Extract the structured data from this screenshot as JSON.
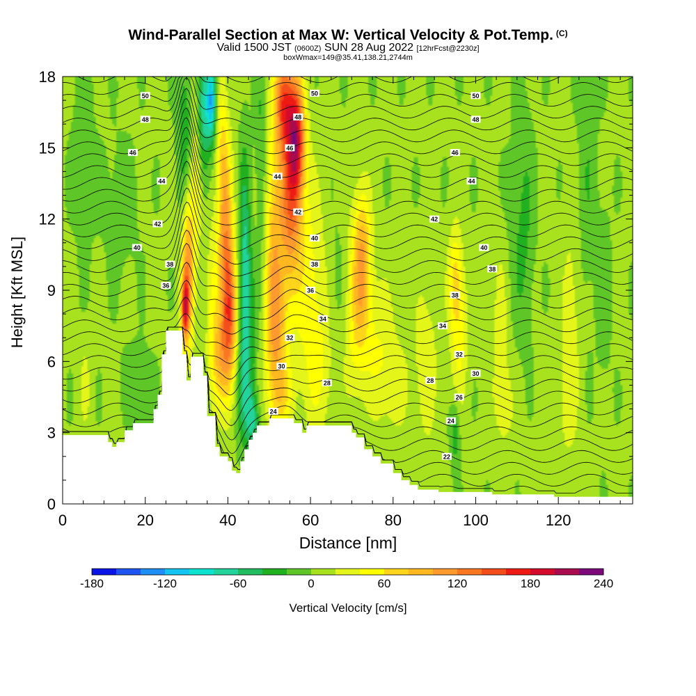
{
  "header": {
    "title": "Wind-Parallel Section at Max W: Vertical Velocity & Pot.Temp.",
    "copyright": "(C)",
    "valid_prefix": "Valid 1500 JST",
    "valid_utc": "(0600Z)",
    "valid_date": "SUN 28 Aug 2022",
    "forecast": "[12hrFcst@2230z]",
    "box_info": "boxWmax=149@35.41,138.21,2744m"
  },
  "chart_data": {
    "type": "heatmap",
    "title": "Wind-Parallel Section at Max W: Vertical Velocity & Pot.Temp.",
    "xlabel": "Distance [nm]",
    "ylabel": "Height [Kft MSL]",
    "xlim": [
      0,
      138
    ],
    "ylim": [
      0,
      18
    ],
    "x_ticks": [
      0,
      20,
      40,
      60,
      80,
      100,
      120
    ],
    "y_ticks": [
      0,
      3,
      6,
      9,
      12,
      15,
      18
    ],
    "colorbar": {
      "label": "Vertical Velocity [cm/s]",
      "ticks": [
        -180,
        -120,
        -60,
        0,
        60,
        120,
        180,
        240
      ],
      "levels": [
        -180,
        -160,
        -140,
        -120,
        -100,
        -80,
        -60,
        -40,
        -20,
        0,
        20,
        40,
        60,
        80,
        100,
        120,
        140,
        160,
        180,
        200,
        220,
        240
      ],
      "colors": [
        "#0a14e6",
        "#1e55f0",
        "#1f8ef5",
        "#12c4ef",
        "#0ee3d0",
        "#22d39c",
        "#22bc60",
        "#20b020",
        "#5fc627",
        "#a8e11d",
        "#e4f51a",
        "#ffff00",
        "#ffd51c",
        "#ffb820",
        "#fe9a2e",
        "#fa7620",
        "#f44d1c",
        "#ee1a14",
        "#d40b2c",
        "#a90c4e",
        "#7a0a7a"
      ]
    },
    "terrain_profile": [
      [
        0,
        2.9
      ],
      [
        2,
        2.9
      ],
      [
        11,
        2.9
      ],
      [
        11,
        2.6
      ],
      [
        12,
        2.6
      ],
      [
        12,
        2.4
      ],
      [
        13,
        2.4
      ],
      [
        13,
        2.6
      ],
      [
        15,
        2.6
      ],
      [
        15,
        3.1
      ],
      [
        17,
        3.1
      ],
      [
        17,
        3.4
      ],
      [
        22,
        3.4
      ],
      [
        22,
        4.0
      ],
      [
        23,
        4.0
      ],
      [
        23,
        4.6
      ],
      [
        24,
        4.6
      ],
      [
        24,
        6.3
      ],
      [
        25,
        6.3
      ],
      [
        25,
        7.3
      ],
      [
        29,
        7.3
      ],
      [
        29,
        6.3
      ],
      [
        30,
        6.3
      ],
      [
        30,
        5.2
      ],
      [
        31,
        5.2
      ],
      [
        31,
        6.2
      ],
      [
        34,
        6.2
      ],
      [
        34,
        5.4
      ],
      [
        35,
        5.4
      ],
      [
        35,
        3.7
      ],
      [
        37,
        3.7
      ],
      [
        37,
        2.4
      ],
      [
        38,
        2.4
      ],
      [
        38,
        2.0
      ],
      [
        40,
        2.0
      ],
      [
        40,
        1.8
      ],
      [
        41,
        1.8
      ],
      [
        41,
        1.4
      ],
      [
        42,
        1.4
      ],
      [
        42,
        1.3
      ],
      [
        43,
        1.3
      ],
      [
        43,
        1.8
      ],
      [
        44,
        1.8
      ],
      [
        44,
        2.3
      ],
      [
        45,
        2.3
      ],
      [
        45,
        2.7
      ],
      [
        46,
        2.7
      ],
      [
        46,
        3.0
      ],
      [
        47,
        3.0
      ],
      [
        47,
        3.3
      ],
      [
        50,
        3.3
      ],
      [
        50,
        3.6
      ],
      [
        52,
        3.6
      ],
      [
        52,
        3.6
      ],
      [
        56,
        3.6
      ],
      [
        56,
        3.4
      ],
      [
        58,
        3.4
      ],
      [
        58,
        3.0
      ],
      [
        59,
        3.0
      ],
      [
        59,
        3.3
      ],
      [
        61,
        3.3
      ],
      [
        61,
        3.3
      ],
      [
        66,
        3.3
      ],
      [
        66,
        3.3
      ],
      [
        70,
        3.3
      ],
      [
        70,
        3.0
      ],
      [
        71,
        3.0
      ],
      [
        71,
        2.8
      ],
      [
        73,
        2.8
      ],
      [
        73,
        2.3
      ],
      [
        75,
        2.3
      ],
      [
        75,
        2.0
      ],
      [
        77,
        2.0
      ],
      [
        77,
        1.7
      ],
      [
        80,
        1.7
      ],
      [
        80,
        1.3
      ],
      [
        82,
        1.3
      ],
      [
        82,
        1.0
      ],
      [
        84,
        1.0
      ],
      [
        84,
        0.8
      ],
      [
        86,
        0.8
      ],
      [
        86,
        0.6
      ],
      [
        91,
        0.6
      ],
      [
        91,
        0.5
      ],
      [
        104,
        0.5
      ],
      [
        104,
        0.4
      ],
      [
        119,
        0.4
      ],
      [
        119,
        0.3
      ],
      [
        138,
        0.3
      ]
    ],
    "w_features": [
      {
        "x": 5.5,
        "y": 5.0,
        "value": 20,
        "sx": 1.0,
        "sy": 1.4
      },
      {
        "x": 18.0,
        "y": 5.2,
        "value": -20,
        "sx": 2.5,
        "sy": 1.0
      },
      {
        "x": 19.5,
        "y": 3.8,
        "value": -20,
        "sx": 1.2,
        "sy": 0.7
      },
      {
        "x": 27.0,
        "y": 5.5,
        "value": 25,
        "sx": 1.5,
        "sy": 1.0
      },
      {
        "x": 30.3,
        "y": 9.7,
        "value": 110,
        "sx": 1.0,
        "sy": 2.2
      },
      {
        "x": 29.6,
        "y": 8.2,
        "value": 130,
        "sx": 0.6,
        "sy": 0.9
      },
      {
        "x": 32.3,
        "y": 13.5,
        "value": 40,
        "sx": 1.0,
        "sy": 2.8
      },
      {
        "x": 29.5,
        "y": 15.8,
        "value": -40,
        "sx": 1.2,
        "sy": 2.4
      },
      {
        "x": 34.0,
        "y": 16.5,
        "value": -70,
        "sx": 1.0,
        "sy": 1.8
      },
      {
        "x": 36.0,
        "y": 17.0,
        "value": -120,
        "sx": 0.8,
        "sy": 1.2
      },
      {
        "x": 34.5,
        "y": 10.5,
        "value": -15,
        "sx": 1.2,
        "sy": 3.5
      },
      {
        "x": 36.0,
        "y": 9.0,
        "value": 35,
        "sx": 1.5,
        "sy": 3.0
      },
      {
        "x": 39.5,
        "y": 11.0,
        "value": 90,
        "sx": 1.2,
        "sy": 3.0
      },
      {
        "x": 40.5,
        "y": 8.0,
        "value": 110,
        "sx": 1.2,
        "sy": 2.0
      },
      {
        "x": 38.0,
        "y": 6.0,
        "value": 70,
        "sx": 1.5,
        "sy": 1.5
      },
      {
        "x": 38.5,
        "y": 15.0,
        "value": 40,
        "sx": 1.0,
        "sy": 2.5
      },
      {
        "x": 44.0,
        "y": 10.0,
        "value": -60,
        "sx": 0.9,
        "sy": 3.5
      },
      {
        "x": 45.0,
        "y": 8.0,
        "value": -40,
        "sx": 1.2,
        "sy": 2.5
      },
      {
        "x": 44.0,
        "y": 4.5,
        "value": -40,
        "sx": 1.5,
        "sy": 1.5
      },
      {
        "x": 46.0,
        "y": 3.5,
        "value": -60,
        "sx": 1.0,
        "sy": 0.8
      },
      {
        "x": 48.0,
        "y": 14.0,
        "value": -30,
        "sx": 1.0,
        "sy": 4.0
      },
      {
        "x": 47.0,
        "y": 11.5,
        "value": 10,
        "sx": 1.0,
        "sy": 2.0
      },
      {
        "x": 51.0,
        "y": 10.5,
        "value": 70,
        "sx": 1.5,
        "sy": 4.0
      },
      {
        "x": 53.5,
        "y": 17.0,
        "value": 130,
        "sx": 1.5,
        "sy": 1.5
      },
      {
        "x": 56.5,
        "y": 15.5,
        "value": 160,
        "sx": 1.5,
        "sy": 1.8
      },
      {
        "x": 55.0,
        "y": 12.5,
        "value": 110,
        "sx": 2.0,
        "sy": 2.5
      },
      {
        "x": 52.0,
        "y": 7.0,
        "value": 60,
        "sx": 2.0,
        "sy": 2.0
      },
      {
        "x": 53.0,
        "y": 4.5,
        "value": 40,
        "sx": 2.0,
        "sy": 1.0
      },
      {
        "x": 60.0,
        "y": 9.5,
        "value": 40,
        "sx": 3.0,
        "sy": 3.0
      },
      {
        "x": 62.0,
        "y": 5.5,
        "value": 30,
        "sx": 3.0,
        "sy": 2.0
      },
      {
        "x": 66.0,
        "y": 9.0,
        "value": -15,
        "sx": 2.0,
        "sy": 2.5
      },
      {
        "x": 72.5,
        "y": 10.5,
        "value": 80,
        "sx": 1.5,
        "sy": 2.0
      },
      {
        "x": 71.0,
        "y": 8.0,
        "value": 45,
        "sx": 2.0,
        "sy": 2.5
      },
      {
        "x": 76.0,
        "y": 7.0,
        "value": 30,
        "sx": 3.0,
        "sy": 2.0
      },
      {
        "x": 80.0,
        "y": 5.0,
        "value": 25,
        "sx": 3.0,
        "sy": 1.5
      },
      {
        "x": 88.0,
        "y": 6.0,
        "value": 30,
        "sx": 2.0,
        "sy": 2.5
      },
      {
        "x": 95.0,
        "y": 9.5,
        "value": 55,
        "sx": 1.2,
        "sy": 1.5
      },
      {
        "x": 96.0,
        "y": 7.0,
        "value": 40,
        "sx": 1.5,
        "sy": 2.0
      },
      {
        "x": 95.0,
        "y": 3.0,
        "value": -40,
        "sx": 0.8,
        "sy": 1.0
      },
      {
        "x": 106.0,
        "y": 7.5,
        "value": 25,
        "sx": 1.5,
        "sy": 2.5
      },
      {
        "x": 107.0,
        "y": 4.0,
        "value": 20,
        "sx": 2.0,
        "sy": 1.5
      },
      {
        "x": 110.0,
        "y": 11.0,
        "value": -15,
        "sx": 2.0,
        "sy": 3.0
      },
      {
        "x": 112.0,
        "y": 12.0,
        "value": -20,
        "sx": 1.5,
        "sy": 3.5
      },
      {
        "x": 123.0,
        "y": 7.5,
        "value": 30,
        "sx": 1.5,
        "sy": 3.0
      },
      {
        "x": 127.0,
        "y": 14.0,
        "value": -20,
        "sx": 1.5,
        "sy": 4.0
      },
      {
        "x": 131.0,
        "y": 9.0,
        "value": -15,
        "sx": 1.2,
        "sy": 3.0
      },
      {
        "x": 120.0,
        "y": 3.5,
        "value": 15,
        "sx": 3.0,
        "sy": 2.0
      },
      {
        "x": 14.0,
        "y": 12.5,
        "value": -15,
        "sx": 3.0,
        "sy": 2.0
      },
      {
        "x": 5.0,
        "y": 15.0,
        "value": -15,
        "sx": 2.0,
        "sy": 3.0
      }
    ],
    "theta_labels": [
      {
        "value": "50",
        "x": 20,
        "y": 17.2
      },
      {
        "value": "48",
        "x": 20,
        "y": 16.2
      },
      {
        "value": "46",
        "x": 17,
        "y": 14.8
      },
      {
        "value": "44",
        "x": 24,
        "y": 13.6
      },
      {
        "value": "42",
        "x": 23,
        "y": 11.8
      },
      {
        "value": "40",
        "x": 18,
        "y": 10.8
      },
      {
        "value": "38",
        "x": 26,
        "y": 10.1
      },
      {
        "value": "36",
        "x": 25,
        "y": 9.2
      },
      {
        "value": "50",
        "x": 61,
        "y": 17.3
      },
      {
        "value": "48",
        "x": 57,
        "y": 16.3
      },
      {
        "value": "46",
        "x": 55,
        "y": 15.0
      },
      {
        "value": "44",
        "x": 52,
        "y": 13.8
      },
      {
        "value": "42",
        "x": 57,
        "y": 12.3
      },
      {
        "value": "40",
        "x": 61,
        "y": 11.2
      },
      {
        "value": "38",
        "x": 61,
        "y": 10.1
      },
      {
        "value": "36",
        "x": 60,
        "y": 9.0
      },
      {
        "value": "34",
        "x": 63,
        "y": 7.8
      },
      {
        "value": "32",
        "x": 55,
        "y": 7.0
      },
      {
        "value": "30",
        "x": 53,
        "y": 5.8
      },
      {
        "value": "28",
        "x": 64,
        "y": 5.1
      },
      {
        "value": "24",
        "x": 51,
        "y": 3.9
      },
      {
        "value": "50",
        "x": 100,
        "y": 17.2
      },
      {
        "value": "48",
        "x": 100,
        "y": 16.2
      },
      {
        "value": "46",
        "x": 95,
        "y": 14.8
      },
      {
        "value": "44",
        "x": 99,
        "y": 13.6
      },
      {
        "value": "42",
        "x": 90,
        "y": 12.0
      },
      {
        "value": "40",
        "x": 102,
        "y": 10.8
      },
      {
        "value": "38",
        "x": 104,
        "y": 9.9
      },
      {
        "value": "38",
        "x": 95,
        "y": 8.8
      },
      {
        "value": "34",
        "x": 92,
        "y": 7.5
      },
      {
        "value": "32",
        "x": 96,
        "y": 6.3
      },
      {
        "value": "30",
        "x": 100,
        "y": 5.5
      },
      {
        "value": "28",
        "x": 89,
        "y": 5.2
      },
      {
        "value": "26",
        "x": 96,
        "y": 4.5
      },
      {
        "value": "24",
        "x": 94,
        "y": 3.5
      },
      {
        "value": "22",
        "x": 93,
        "y": 2.0
      }
    ]
  }
}
